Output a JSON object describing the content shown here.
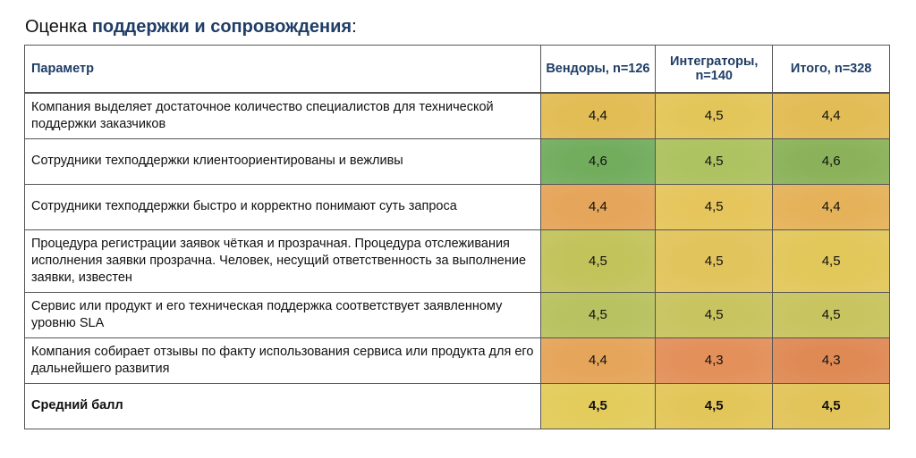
{
  "title": {
    "prefix": "Оценка ",
    "highlight": "поддержки и сопровождения",
    "suffix": ":"
  },
  "table": {
    "headers": [
      "Параметр",
      "Вендоры, n=126",
      "Интеграторы, n=140",
      "Итого, n=328"
    ],
    "rows": [
      {
        "param": "Компания выделяет достаточное количество специалистов для технической поддержки заказчиков",
        "values": [
          "4,4",
          "4,5",
          "4,4"
        ],
        "colors": [
          "#e2bc55",
          "#e3c65a",
          "#e2bc55"
        ]
      },
      {
        "param": "Сотрудники техподдержки клиентоориентированы и вежливы",
        "values": [
          "4,6",
          "4,5",
          "4,6"
        ],
        "colors": [
          "#72ad5e",
          "#adc260",
          "#8bb25a"
        ]
      },
      {
        "param": "Сотрудники техподдержки быстро и корректно понимают суть запроса",
        "values": [
          "4,4",
          "4,5",
          "4,4"
        ],
        "colors": [
          "#e5a55a",
          "#e5c55c",
          "#e5b25a"
        ]
      },
      {
        "param": "Процедура регистрации заявок чёткая и прозрачная. Процедура отслеживания исполнения заявки прозрачна. Человек, несущий ответственность за выполнение заявки, известен",
        "values": [
          "4,5",
          "4,5",
          "4,5"
        ],
        "colors": [
          "#c3c35c",
          "#e2c45c",
          "#e2c75a"
        ]
      },
      {
        "param": "Сервис или продукт и его техническая поддержка соответствует заявленному уровню SLA",
        "values": [
          "4,5",
          "4,5",
          "4,5"
        ],
        "colors": [
          "#b8c260",
          "#c8c460",
          "#c8c460"
        ]
      },
      {
        "param": "Компания собирает отзывы по факту использования сервиса или продукта для его дальнейшего развития",
        "values": [
          "4,4",
          "4,3",
          "4,3"
        ],
        "colors": [
          "#e5a55a",
          "#e3905a",
          "#df8a55"
        ]
      }
    ],
    "average": {
      "param": "Средний балл",
      "values": [
        "4,5",
        "4,5",
        "4,5"
      ],
      "colors": [
        "#e3cc5c",
        "#e3c65a",
        "#e2c45a"
      ]
    }
  }
}
